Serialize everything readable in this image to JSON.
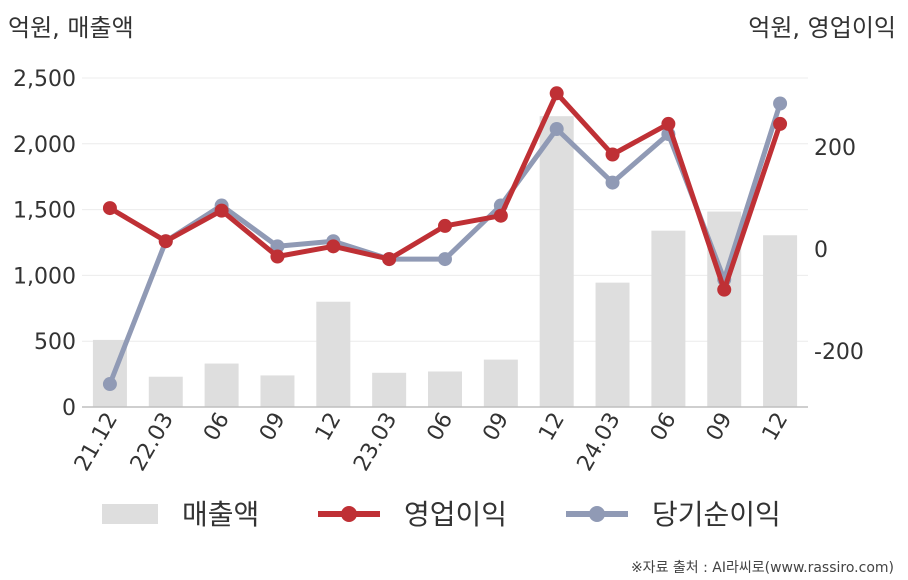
{
  "chart_data": {
    "type": "bar+line",
    "left_axis_unit": "억원, 매출액",
    "right_axis_unit": "억원, 영업이익",
    "categories": [
      "21.12",
      "22.03",
      "06",
      "09",
      "12",
      "23.03",
      "06",
      "09",
      "12",
      "24.03",
      "06",
      "09",
      "12"
    ],
    "left_axis": {
      "ylim": [
        0,
        2500
      ],
      "ticks": [
        "0",
        "500",
        "1,000",
        "1,500",
        "2,000",
        "2,500"
      ],
      "tick_values": [
        0,
        500,
        1000,
        1500,
        2000,
        2500
      ]
    },
    "right_axis": {
      "ylim": [
        -310,
        335
      ],
      "ticks": [
        "-200",
        "0",
        "200"
      ],
      "tick_values": [
        -200,
        0,
        200
      ]
    },
    "series": [
      {
        "name": "매출액",
        "type": "bar",
        "axis": "left",
        "color": "#dedede",
        "values": [
          510,
          230,
          330,
          240,
          800,
          260,
          270,
          360,
          2210,
          945,
          1340,
          1485,
          1305
        ]
      },
      {
        "name": "영업이익",
        "type": "line",
        "axis": "right",
        "color": "#bf3035",
        "values": [
          80,
          15,
          75,
          -15,
          5,
          -20,
          45,
          65,
          305,
          185,
          245,
          -80,
          245
        ]
      },
      {
        "name": "당기순이익",
        "type": "line",
        "axis": "right",
        "color": "#909ab5",
        "values": [
          -265,
          15,
          85,
          5,
          15,
          -20,
          -20,
          85,
          235,
          130,
          225,
          -60,
          285
        ]
      }
    ],
    "gridlines": true,
    "legend_position": "bottom"
  },
  "legend": [
    {
      "label": "매출액",
      "marker": "bar",
      "color": "#dedede"
    },
    {
      "label": "영업이익",
      "marker": "line-dot",
      "color": "#bf3035"
    },
    {
      "label": "당기순이익",
      "marker": "line-dot",
      "color": "#909ab5"
    }
  ],
  "source_note": "※자료 출처 : AI라씨로(www.rassiro.com)"
}
